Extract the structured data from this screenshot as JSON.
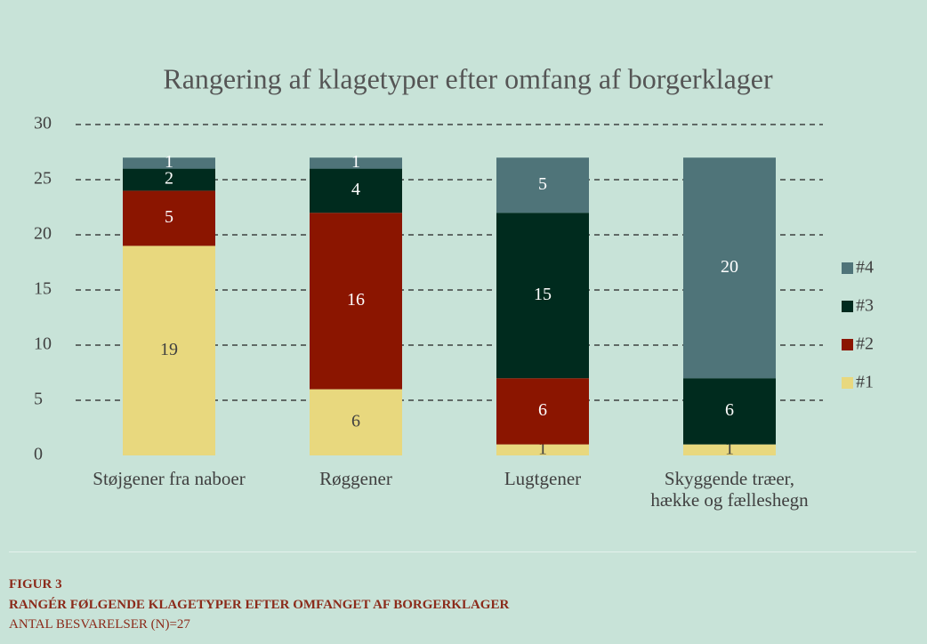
{
  "chart_data": {
    "type": "stacked_bar",
    "title": "Rangering af klagetyper efter omfang af borgerklager",
    "categories": [
      "Støjgener fra naboer",
      "Røggener",
      "Lugtgener",
      "Skyggende træer, hække og fælleshegn"
    ],
    "series": [
      {
        "name": "#1",
        "color": "#e8d87e",
        "values": [
          19,
          6,
          1,
          1
        ]
      },
      {
        "name": "#2",
        "color": "#8b1500",
        "values": [
          5,
          16,
          6,
          0
        ]
      },
      {
        "name": "#3",
        "color": "#002b1e",
        "values": [
          2,
          4,
          15,
          6
        ]
      },
      {
        "name": "#4",
        "color": "#4f7479",
        "values": [
          1,
          1,
          5,
          20
        ]
      }
    ],
    "ylim": [
      0,
      30
    ],
    "yticks": [
      0,
      5,
      10,
      15,
      20,
      25,
      30
    ],
    "grid": true,
    "legend": "right"
  },
  "caption": {
    "figure": "FIGUR 3",
    "heading": "RANGÉR FØLGENDE KLAGETYPER EFTER OMFANGET AF BORGERKLAGER",
    "note": "ANTAL BESVARELSER (N)=27"
  }
}
